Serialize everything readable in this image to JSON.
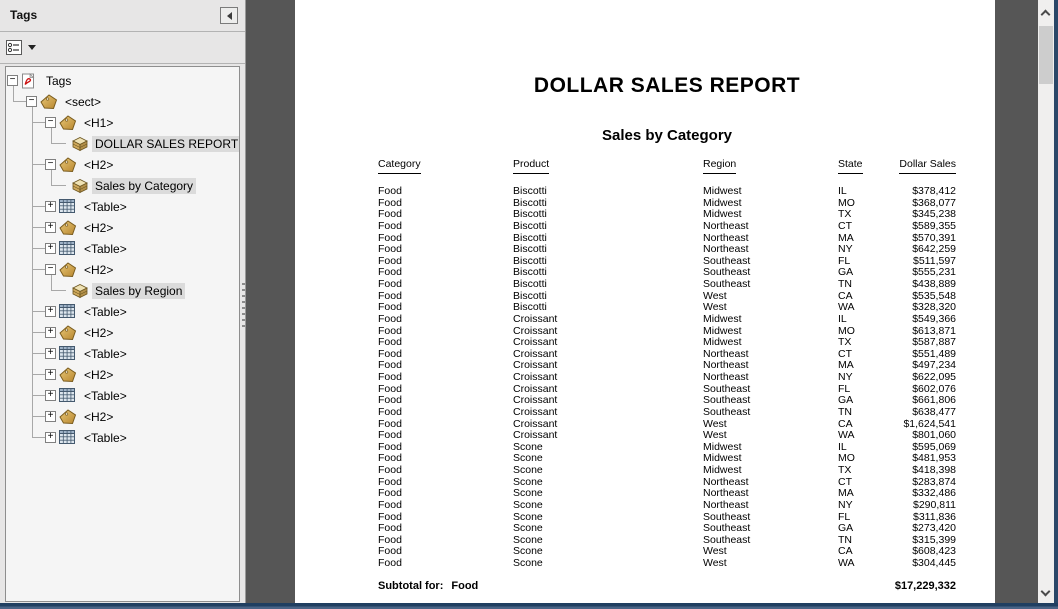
{
  "panel": {
    "title": "Tags",
    "tree": {
      "nodes": [
        {
          "label": "Tags",
          "icon": "pdf-root-icon",
          "expander": "minus",
          "level": 0,
          "highlighted": false
        },
        {
          "label": "<sect>",
          "icon": "tag-icon",
          "expander": "minus",
          "level": 1,
          "highlighted": false
        },
        {
          "label": "<H1>",
          "icon": "tag-icon",
          "expander": "minus",
          "level": 2,
          "highlighted": false
        },
        {
          "label": "DOLLAR SALES REPORT",
          "icon": "content-icon",
          "expander": "none",
          "level": 3,
          "highlighted": true
        },
        {
          "label": "<H2>",
          "icon": "tag-icon",
          "expander": "minus",
          "level": 2,
          "highlighted": false
        },
        {
          "label": "Sales by Category",
          "icon": "content-icon",
          "expander": "none",
          "level": 3,
          "highlighted": true
        },
        {
          "label": "<Table>",
          "icon": "table-icon",
          "expander": "plus",
          "level": 2,
          "highlighted": false
        },
        {
          "label": "<H2>",
          "icon": "tag-icon",
          "expander": "plus",
          "level": 2,
          "highlighted": false
        },
        {
          "label": "<Table>",
          "icon": "table-icon",
          "expander": "plus",
          "level": 2,
          "highlighted": false
        },
        {
          "label": "<H2>",
          "icon": "tag-icon",
          "expander": "minus",
          "level": 2,
          "highlighted": false
        },
        {
          "label": "Sales by Region",
          "icon": "content-icon",
          "expander": "none",
          "level": 3,
          "highlighted": true
        },
        {
          "label": "<Table>",
          "icon": "table-icon",
          "expander": "plus",
          "level": 2,
          "highlighted": false
        },
        {
          "label": "<H2>",
          "icon": "tag-icon",
          "expander": "plus",
          "level": 2,
          "highlighted": false
        },
        {
          "label": "<Table>",
          "icon": "table-icon",
          "expander": "plus",
          "level": 2,
          "highlighted": false
        },
        {
          "label": "<H2>",
          "icon": "tag-icon",
          "expander": "plus",
          "level": 2,
          "highlighted": false
        },
        {
          "label": "<Table>",
          "icon": "table-icon",
          "expander": "plus",
          "level": 2,
          "highlighted": false
        },
        {
          "label": "<H2>",
          "icon": "tag-icon",
          "expander": "plus",
          "level": 2,
          "highlighted": false
        },
        {
          "label": "<Table>",
          "icon": "table-icon",
          "expander": "plus",
          "level": 2,
          "highlighted": false
        }
      ]
    }
  },
  "document": {
    "title": "DOLLAR SALES REPORT",
    "section_heading": "Sales by Category",
    "table": {
      "columns": [
        "Category",
        "Product",
        "Region",
        "State",
        "Dollar Sales"
      ],
      "rows": [
        [
          "Food",
          "Biscotti",
          "Midwest",
          "IL",
          "$378,412"
        ],
        [
          "Food",
          "Biscotti",
          "Midwest",
          "MO",
          "$368,077"
        ],
        [
          "Food",
          "Biscotti",
          "Midwest",
          "TX",
          "$345,238"
        ],
        [
          "Food",
          "Biscotti",
          "Northeast",
          "CT",
          "$589,355"
        ],
        [
          "Food",
          "Biscotti",
          "Northeast",
          "MA",
          "$570,391"
        ],
        [
          "Food",
          "Biscotti",
          "Northeast",
          "NY",
          "$642,259"
        ],
        [
          "Food",
          "Biscotti",
          "Southeast",
          "FL",
          "$511,597"
        ],
        [
          "Food",
          "Biscotti",
          "Southeast",
          "GA",
          "$555,231"
        ],
        [
          "Food",
          "Biscotti",
          "Southeast",
          "TN",
          "$438,889"
        ],
        [
          "Food",
          "Biscotti",
          "West",
          "CA",
          "$535,548"
        ],
        [
          "Food",
          "Biscotti",
          "West",
          "WA",
          "$328,320"
        ],
        [
          "Food",
          "Croissant",
          "Midwest",
          "IL",
          "$549,366"
        ],
        [
          "Food",
          "Croissant",
          "Midwest",
          "MO",
          "$613,871"
        ],
        [
          "Food",
          "Croissant",
          "Midwest",
          "TX",
          "$587,887"
        ],
        [
          "Food",
          "Croissant",
          "Northeast",
          "CT",
          "$551,489"
        ],
        [
          "Food",
          "Croissant",
          "Northeast",
          "MA",
          "$497,234"
        ],
        [
          "Food",
          "Croissant",
          "Northeast",
          "NY",
          "$622,095"
        ],
        [
          "Food",
          "Croissant",
          "Southeast",
          "FL",
          "$602,076"
        ],
        [
          "Food",
          "Croissant",
          "Southeast",
          "GA",
          "$661,806"
        ],
        [
          "Food",
          "Croissant",
          "Southeast",
          "TN",
          "$638,477"
        ],
        [
          "Food",
          "Croissant",
          "West",
          "CA",
          "$1,624,541"
        ],
        [
          "Food",
          "Croissant",
          "West",
          "WA",
          "$801,060"
        ],
        [
          "Food",
          "Scone",
          "Midwest",
          "IL",
          "$595,069"
        ],
        [
          "Food",
          "Scone",
          "Midwest",
          "MO",
          "$481,953"
        ],
        [
          "Food",
          "Scone",
          "Midwest",
          "TX",
          "$418,398"
        ],
        [
          "Food",
          "Scone",
          "Northeast",
          "CT",
          "$283,874"
        ],
        [
          "Food",
          "Scone",
          "Northeast",
          "MA",
          "$332,486"
        ],
        [
          "Food",
          "Scone",
          "Northeast",
          "NY",
          "$290,811"
        ],
        [
          "Food",
          "Scone",
          "Southeast",
          "FL",
          "$311,836"
        ],
        [
          "Food",
          "Scone",
          "Southeast",
          "GA",
          "$273,420"
        ],
        [
          "Food",
          "Scone",
          "Southeast",
          "TN",
          "$315,399"
        ],
        [
          "Food",
          "Scone",
          "West",
          "CA",
          "$608,423"
        ],
        [
          "Food",
          "Scone",
          "West",
          "WA",
          "$304,445"
        ]
      ],
      "subtotal": {
        "label": "Subtotal for:",
        "category": "Food",
        "value": "$17,229,332"
      }
    }
  },
  "colors": {
    "canvas": "#565656",
    "panel_bg": "#e7e6e6",
    "tree_bg": "#f5f5f5",
    "highlight": "#dbdbdb",
    "tag_gold": "#d2a54b",
    "table_icon_blue": "#a9bccd",
    "frame_navy": "#203f61",
    "scroll_track": "#f0efee",
    "scroll_thumb": "#cdcdcd"
  }
}
